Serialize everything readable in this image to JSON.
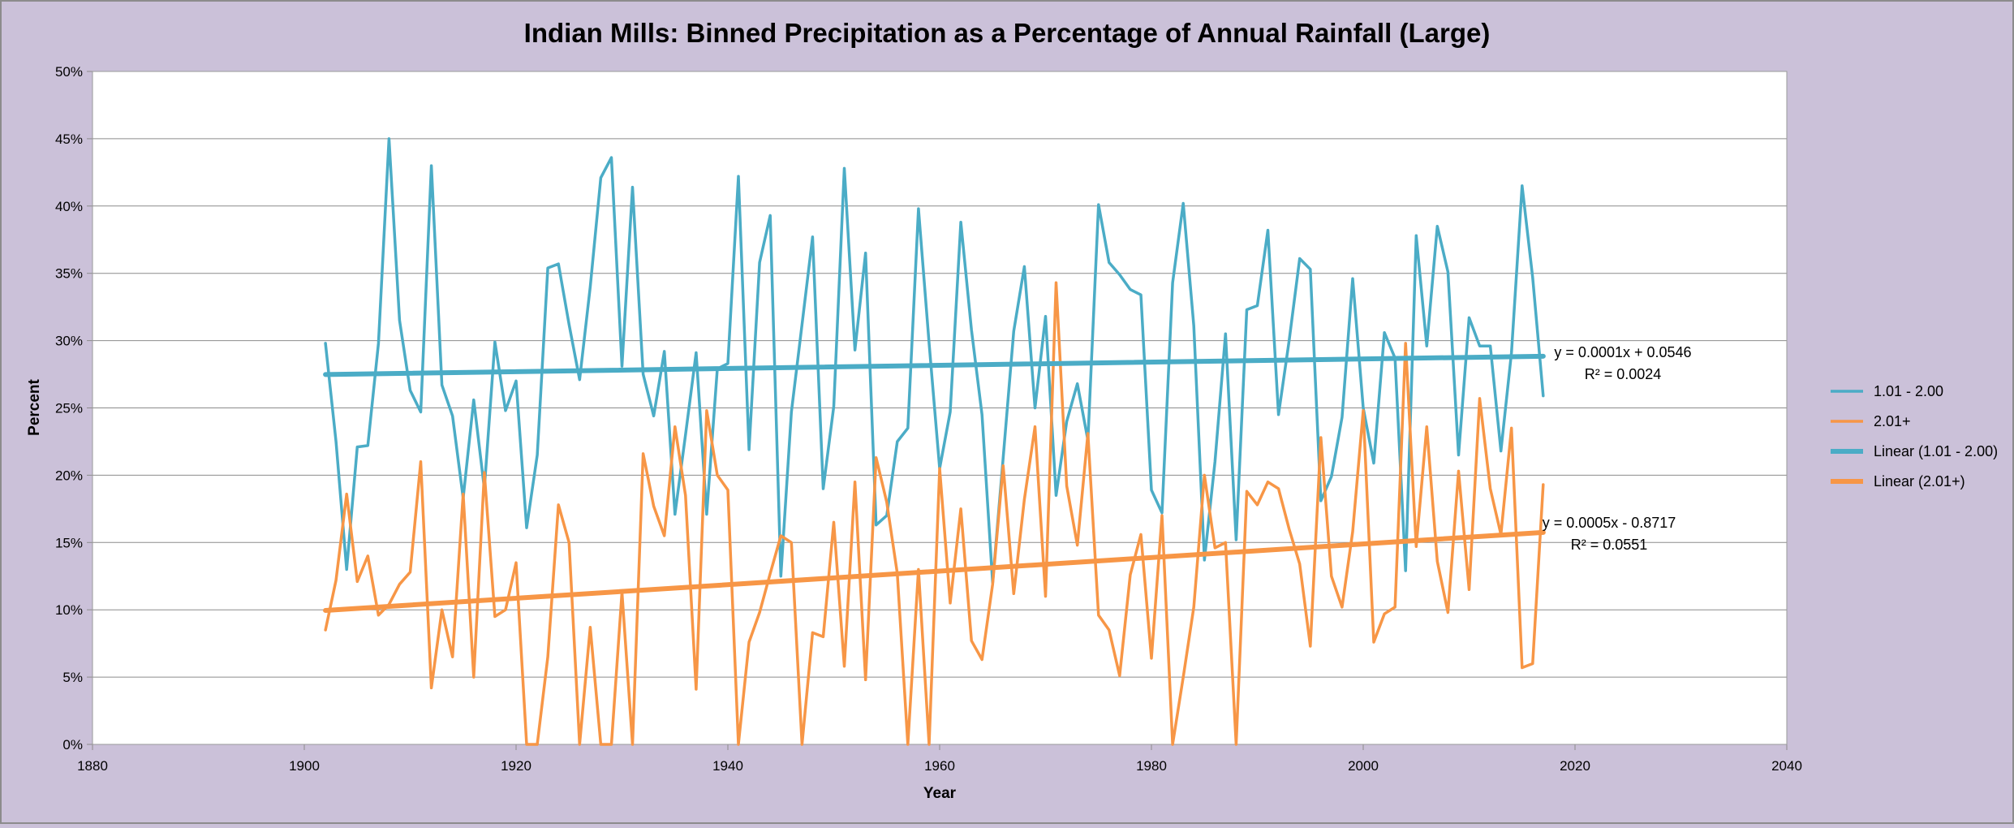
{
  "chart_data": {
    "type": "line",
    "title": "Indian Mills: Binned Precipitation as a Percentage of Annual Rainfall (Large)",
    "xlabel": "Year",
    "ylabel": "Percent",
    "xlim": [
      1880,
      2040
    ],
    "ylim": [
      0,
      0.5
    ],
    "x_ticks": [
      "1880",
      "1900",
      "1920",
      "1940",
      "1960",
      "1980",
      "2000",
      "2020",
      "2040"
    ],
    "y_ticks": [
      "0%",
      "5%",
      "10%",
      "15%",
      "20%",
      "25%",
      "30%",
      "35%",
      "40%",
      "45%",
      "50%"
    ],
    "grid": "horizontal",
    "legend_position": "right",
    "series": [
      {
        "name": "1.01 - 2.00",
        "color": "#4bacc6",
        "x": [
          1902,
          1903,
          1904,
          1905,
          1906,
          1907,
          1908,
          1909,
          1910,
          1911,
          1912,
          1913,
          1914,
          1915,
          1916,
          1917,
          1918,
          1919,
          1920,
          1921,
          1922,
          1923,
          1924,
          1925,
          1926,
          1927,
          1928,
          1929,
          1930,
          1931,
          1932,
          1933,
          1934,
          1935,
          1936,
          1937,
          1938,
          1939,
          1940,
          1941,
          1942,
          1943,
          1944,
          1945,
          1946,
          1947,
          1948,
          1949,
          1950,
          1951,
          1952,
          1953,
          1954,
          1955,
          1956,
          1957,
          1958,
          1959,
          1960,
          1961,
          1962,
          1963,
          1964,
          1965,
          1966,
          1967,
          1968,
          1969,
          1970,
          1971,
          1972,
          1973,
          1974,
          1975,
          1976,
          1977,
          1978,
          1979,
          1980,
          1981,
          1982,
          1983,
          1984,
          1985,
          1986,
          1987,
          1988,
          1989,
          1990,
          1991,
          1992,
          1993,
          1994,
          1995,
          1996,
          1997,
          1998,
          1999,
          2000,
          2001,
          2002,
          2003,
          2004,
          2005,
          2006,
          2007,
          2008,
          2009,
          2010,
          2011,
          2012,
          2013,
          2014,
          2015,
          2016,
          2017
        ],
        "values": [
          0.298,
          0.225,
          0.13,
          0.221,
          0.222,
          0.298,
          0.45,
          0.315,
          0.263,
          0.247,
          0.43,
          0.267,
          0.244,
          0.183,
          0.256,
          0.19,
          0.299,
          0.248,
          0.27,
          0.161,
          0.215,
          0.354,
          0.357,
          0.312,
          0.271,
          0.34,
          0.421,
          0.436,
          0.281,
          0.414,
          0.275,
          0.244,
          0.292,
          0.171,
          0.23,
          0.291,
          0.171,
          0.279,
          0.283,
          0.422,
          0.219,
          0.358,
          0.393,
          0.125,
          0.247,
          0.312,
          0.377,
          0.19,
          0.251,
          0.428,
          0.293,
          0.365,
          0.163,
          0.17,
          0.225,
          0.235,
          0.398,
          0.298,
          0.205,
          0.247,
          0.388,
          0.308,
          0.245,
          0.12,
          0.213,
          0.307,
          0.355,
          0.25,
          0.318,
          0.185,
          0.24,
          0.268,
          0.226,
          0.401,
          0.358,
          0.349,
          0.338,
          0.334,
          0.189,
          0.172,
          0.343,
          0.402,
          0.311,
          0.137,
          0.21,
          0.305,
          0.152,
          0.323,
          0.326,
          0.382,
          0.245,
          0.3,
          0.361,
          0.353,
          0.181,
          0.199,
          0.243,
          0.346,
          0.25,
          0.209,
          0.306,
          0.287,
          0.129,
          0.378,
          0.296,
          0.385,
          0.351,
          0.215,
          0.317,
          0.296,
          0.296,
          0.218,
          0.291,
          0.415,
          0.347,
          0.259
        ]
      },
      {
        "name": "2.01+",
        "color": "#f79646",
        "x": [
          1902,
          1903,
          1904,
          1905,
          1906,
          1907,
          1908,
          1909,
          1910,
          1911,
          1912,
          1913,
          1914,
          1915,
          1916,
          1917,
          1918,
          1919,
          1920,
          1921,
          1922,
          1923,
          1924,
          1925,
          1926,
          1927,
          1928,
          1929,
          1930,
          1931,
          1932,
          1933,
          1934,
          1935,
          1936,
          1937,
          1938,
          1939,
          1940,
          1941,
          1942,
          1943,
          1944,
          1945,
          1946,
          1947,
          1948,
          1949,
          1950,
          1951,
          1952,
          1953,
          1954,
          1955,
          1956,
          1957,
          1958,
          1959,
          1960,
          1961,
          1962,
          1963,
          1964,
          1965,
          1966,
          1967,
          1968,
          1969,
          1970,
          1971,
          1972,
          1973,
          1974,
          1975,
          1976,
          1977,
          1978,
          1979,
          1980,
          1981,
          1982,
          1983,
          1984,
          1985,
          1986,
          1987,
          1988,
          1989,
          1990,
          1991,
          1992,
          1993,
          1994,
          1995,
          1996,
          1997,
          1998,
          1999,
          2000,
          2001,
          2002,
          2003,
          2004,
          2005,
          2006,
          2007,
          2008,
          2009,
          2010,
          2011,
          2012,
          2013,
          2014,
          2015,
          2016,
          2017
        ],
        "values": [
          0.085,
          0.122,
          0.186,
          0.121,
          0.14,
          0.096,
          0.104,
          0.119,
          0.128,
          0.21,
          0.042,
          0.1,
          0.065,
          0.186,
          0.05,
          0.202,
          0.095,
          0.1,
          0.135,
          0.0,
          0.0,
          0.065,
          0.178,
          0.15,
          0.0,
          0.087,
          0.0,
          0.0,
          0.113,
          0.0,
          0.216,
          0.177,
          0.155,
          0.236,
          0.185,
          0.041,
          0.248,
          0.2,
          0.189,
          0.0,
          0.076,
          0.098,
          0.127,
          0.155,
          0.15,
          0.0,
          0.083,
          0.08,
          0.165,
          0.058,
          0.195,
          0.048,
          0.213,
          0.18,
          0.127,
          0.0,
          0.13,
          0.0,
          0.205,
          0.105,
          0.175,
          0.077,
          0.063,
          0.119,
          0.207,
          0.112,
          0.182,
          0.236,
          0.11,
          0.343,
          0.192,
          0.148,
          0.231,
          0.096,
          0.085,
          0.051,
          0.126,
          0.156,
          0.064,
          0.17,
          0.0,
          0.05,
          0.102,
          0.2,
          0.146,
          0.15,
          0.0,
          0.188,
          0.178,
          0.195,
          0.19,
          0.16,
          0.134,
          0.073,
          0.228,
          0.125,
          0.102,
          0.158,
          0.248,
          0.076,
          0.097,
          0.102,
          0.298,
          0.147,
          0.236,
          0.136,
          0.098,
          0.203,
          0.115,
          0.257,
          0.19,
          0.156,
          0.235,
          0.057,
          0.06,
          0.193
        ]
      }
    ],
    "trendlines": [
      {
        "name": "Linear (1.01 - 2.00)",
        "color": "#4bacc6",
        "x": [
          1902,
          2017
        ],
        "values": [
          0.2748,
          0.2884
        ],
        "equation": "y = 0.0001x + 0.0546",
        "r2": "R² = 0.0024"
      },
      {
        "name": "Linear (2.01+)",
        "color": "#f79646",
        "x": [
          1902,
          2017
        ],
        "values": [
          0.0995,
          0.1575
        ],
        "equation": "y = 0.0005x - 0.8717",
        "r2": "R² = 0.0551"
      }
    ]
  }
}
